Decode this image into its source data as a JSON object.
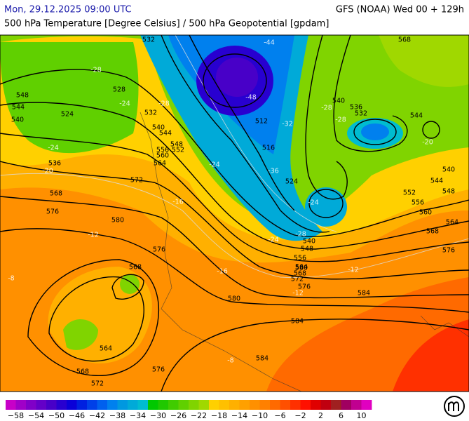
{
  "header": {
    "datetime": "Mon, 29.12.2025 09:00 UTC",
    "model": "GFS (NOAA) Wed 00 + 129h",
    "title": "500 hPa Temperature [Degree Celsius] / 500 hPa Geopotential [gpdam]"
  },
  "contour_labels": [
    532,
    552,
    548,
    544,
    540,
    524,
    528,
    532,
    540,
    544,
    548,
    556,
    560,
    564,
    536,
    568,
    572,
    576,
    580,
    568,
    564,
    568,
    572,
    576,
    580,
    584,
    584,
    576,
    584,
    580,
    576,
    572,
    564,
    568,
    556,
    548,
    540,
    524,
    516,
    512,
    540,
    536,
    532,
    544,
    540,
    544,
    548,
    552,
    556,
    560,
    564,
    568,
    576,
    568
  ],
  "temperature_labels": [
    -28,
    -24,
    -28,
    -44,
    -48,
    -32,
    -36,
    -28,
    -24,
    -24,
    -28,
    -24,
    -20,
    -16,
    -12,
    -12,
    -16,
    -12,
    -8,
    -8,
    -24,
    -20,
    -28
  ],
  "colorbar": {
    "colors": [
      "#c800c8",
      "#a000c8",
      "#8000c8",
      "#6400c8",
      "#4800c8",
      "#2800d0",
      "#0a00d8",
      "#0020e0",
      "#0040e8",
      "#0060ee",
      "#0080ee",
      "#0098e0",
      "#00aad8",
      "#00bcd0",
      "#00c800",
      "#20c800",
      "#40cc00",
      "#60d000",
      "#80d400",
      "#a0d800",
      "#ffd000",
      "#ffc000",
      "#ffb000",
      "#ffa000",
      "#ff9000",
      "#ff8000",
      "#ff6a00",
      "#ff5000",
      "#ff3000",
      "#ff1000",
      "#e00000",
      "#c00010",
      "#a02020",
      "#a00060",
      "#c00090",
      "#e000c0"
    ],
    "ticks": [
      {
        "value": -58,
        "label": "−58"
      },
      {
        "value": -54,
        "label": "−54"
      },
      {
        "value": -50,
        "label": "−50"
      },
      {
        "value": -46,
        "label": "−46"
      },
      {
        "value": -42,
        "label": "−42"
      },
      {
        "value": -38,
        "label": "−38"
      },
      {
        "value": -34,
        "label": "−34"
      },
      {
        "value": -30,
        "label": "−30"
      },
      {
        "value": -26,
        "label": "−26"
      },
      {
        "value": -22,
        "label": "−22"
      },
      {
        "value": -18,
        "label": "−18"
      },
      {
        "value": -14,
        "label": "−14"
      },
      {
        "value": -10,
        "label": "−10"
      },
      {
        "value": -6,
        "label": "−6"
      },
      {
        "value": -2,
        "label": "−2"
      },
      2,
      6,
      10
    ],
    "range": [
      -60,
      12
    ]
  }
}
